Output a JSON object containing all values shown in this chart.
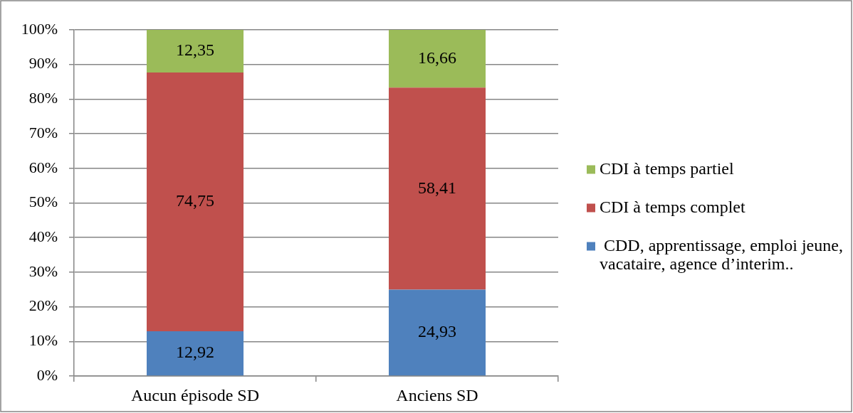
{
  "chart_data": {
    "type": "bar",
    "stacked": true,
    "categories": [
      "Aucun épisode SD",
      "Anciens SD"
    ],
    "series": [
      {
        "name": " CDD, apprentissage, emploi jeune, vacataire, agence d’interim..",
        "color": "#4f81bd",
        "values": [
          12.92,
          24.93
        ],
        "value_labels": [
          "12,92",
          "24,93"
        ]
      },
      {
        "name": "CDI à temps complet",
        "color": "#c0504d",
        "values": [
          74.75,
          58.41
        ],
        "value_labels": [
          "74,75",
          "58,41"
        ]
      },
      {
        "name": "CDI à temps partiel",
        "color": "#9bbb59",
        "values": [
          12.35,
          16.66
        ],
        "value_labels": [
          "12,35",
          "16,66"
        ]
      }
    ],
    "ylim": [
      0,
      100
    ],
    "yticks": [
      {
        "value": 0,
        "label": "0%"
      },
      {
        "value": 10,
        "label": "10%"
      },
      {
        "value": 20,
        "label": "20%"
      },
      {
        "value": 30,
        "label": "30%"
      },
      {
        "value": 40,
        "label": "40%"
      },
      {
        "value": 50,
        "label": "50%"
      },
      {
        "value": 60,
        "label": "60%"
      },
      {
        "value": 70,
        "label": "70%"
      },
      {
        "value": 80,
        "label": "80%"
      },
      {
        "value": 90,
        "label": "90%"
      },
      {
        "value": 100,
        "label": "100%"
      }
    ],
    "grid": "y",
    "legend": "right"
  }
}
